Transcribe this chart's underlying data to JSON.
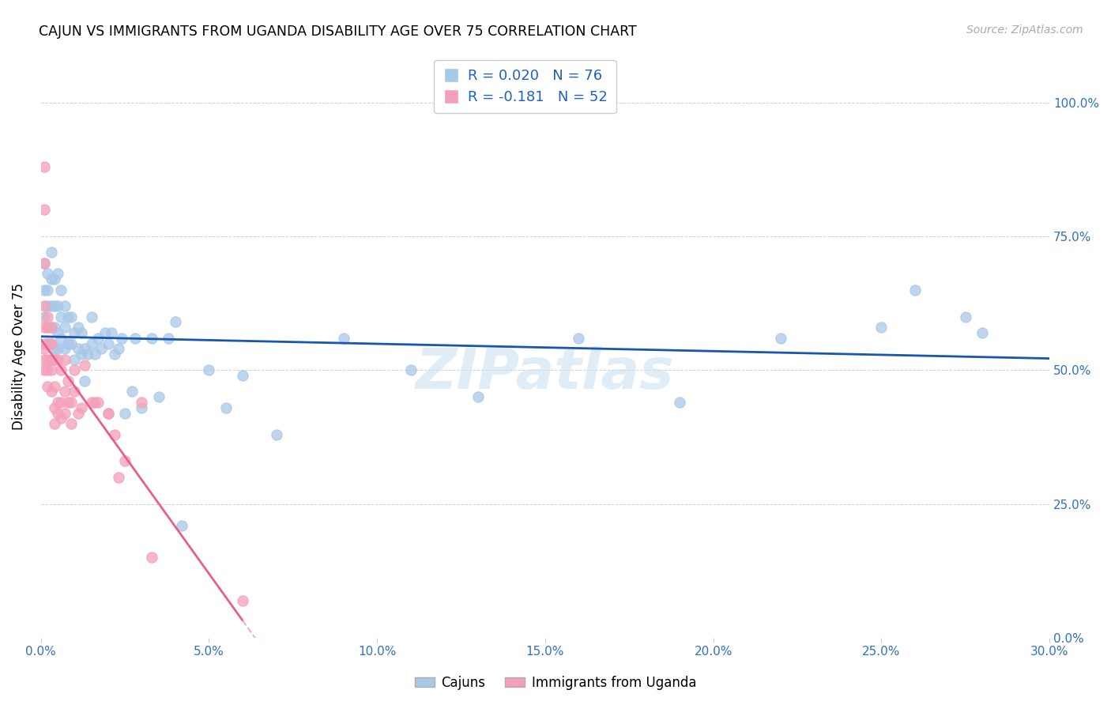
{
  "title": "CAJUN VS IMMIGRANTS FROM UGANDA DISABILITY AGE OVER 75 CORRELATION CHART",
  "source": "Source: ZipAtlas.com",
  "ylabel": "Disability Age Over 75",
  "legend_label_cajun": "Cajuns",
  "legend_label_uganda": "Immigrants from Uganda",
  "watermark": "ZIPatlas",
  "xmin": 0.0,
  "xmax": 0.3,
  "ymin": 0.0,
  "ymax": 1.05,
  "cajun_R": 0.02,
  "cajun_N": 76,
  "uganda_R": -0.181,
  "uganda_N": 52,
  "cajun_color": "#a8c8e8",
  "uganda_color": "#f4a0b8",
  "cajun_line_color": "#1a56b0",
  "uganda_line_color": "#e8608a",
  "uganda_dash_color": "#f0b0c8",
  "cajun_x": [
    0.001,
    0.001,
    0.001,
    0.001,
    0.002,
    0.002,
    0.002,
    0.002,
    0.002,
    0.003,
    0.003,
    0.003,
    0.003,
    0.003,
    0.003,
    0.004,
    0.004,
    0.004,
    0.004,
    0.005,
    0.005,
    0.005,
    0.005,
    0.006,
    0.006,
    0.006,
    0.007,
    0.007,
    0.007,
    0.008,
    0.008,
    0.009,
    0.009,
    0.01,
    0.01,
    0.011,
    0.011,
    0.012,
    0.012,
    0.013,
    0.013,
    0.014,
    0.015,
    0.015,
    0.016,
    0.017,
    0.018,
    0.019,
    0.02,
    0.021,
    0.022,
    0.023,
    0.024,
    0.025,
    0.027,
    0.028,
    0.03,
    0.033,
    0.035,
    0.038,
    0.04,
    0.042,
    0.05,
    0.055,
    0.06,
    0.07,
    0.09,
    0.11,
    0.13,
    0.16,
    0.19,
    0.22,
    0.25,
    0.26,
    0.275,
    0.28
  ],
  "cajun_y": [
    0.55,
    0.6,
    0.65,
    0.7,
    0.55,
    0.58,
    0.62,
    0.65,
    0.68,
    0.52,
    0.55,
    0.58,
    0.62,
    0.67,
    0.72,
    0.54,
    0.58,
    0.62,
    0.67,
    0.54,
    0.57,
    0.62,
    0.68,
    0.56,
    0.6,
    0.65,
    0.54,
    0.58,
    0.62,
    0.55,
    0.6,
    0.55,
    0.6,
    0.52,
    0.57,
    0.54,
    0.58,
    0.53,
    0.57,
    0.54,
    0.48,
    0.53,
    0.55,
    0.6,
    0.53,
    0.56,
    0.54,
    0.57,
    0.55,
    0.57,
    0.53,
    0.54,
    0.56,
    0.42,
    0.46,
    0.56,
    0.43,
    0.56,
    0.45,
    0.56,
    0.59,
    0.21,
    0.5,
    0.43,
    0.49,
    0.38,
    0.56,
    0.5,
    0.45,
    0.56,
    0.44,
    0.56,
    0.58,
    0.65,
    0.6,
    0.57
  ],
  "uganda_x": [
    0.001,
    0.001,
    0.001,
    0.001,
    0.001,
    0.001,
    0.001,
    0.001,
    0.002,
    0.002,
    0.002,
    0.002,
    0.002,
    0.002,
    0.003,
    0.003,
    0.003,
    0.003,
    0.003,
    0.004,
    0.004,
    0.004,
    0.004,
    0.005,
    0.005,
    0.005,
    0.006,
    0.006,
    0.006,
    0.007,
    0.007,
    0.007,
    0.008,
    0.008,
    0.009,
    0.009,
    0.01,
    0.01,
    0.011,
    0.012,
    0.013,
    0.015,
    0.016,
    0.017,
    0.02,
    0.02,
    0.022,
    0.023,
    0.025,
    0.03,
    0.033,
    0.06
  ],
  "uganda_y": [
    0.88,
    0.8,
    0.7,
    0.62,
    0.58,
    0.54,
    0.52,
    0.5,
    0.52,
    0.55,
    0.58,
    0.6,
    0.5,
    0.47,
    0.52,
    0.55,
    0.58,
    0.5,
    0.46,
    0.52,
    0.47,
    0.43,
    0.4,
    0.52,
    0.44,
    0.42,
    0.5,
    0.44,
    0.41,
    0.52,
    0.46,
    0.42,
    0.48,
    0.44,
    0.44,
    0.4,
    0.5,
    0.46,
    0.42,
    0.43,
    0.51,
    0.44,
    0.44,
    0.44,
    0.42,
    0.42,
    0.38,
    0.3,
    0.33,
    0.44,
    0.15,
    0.07
  ]
}
